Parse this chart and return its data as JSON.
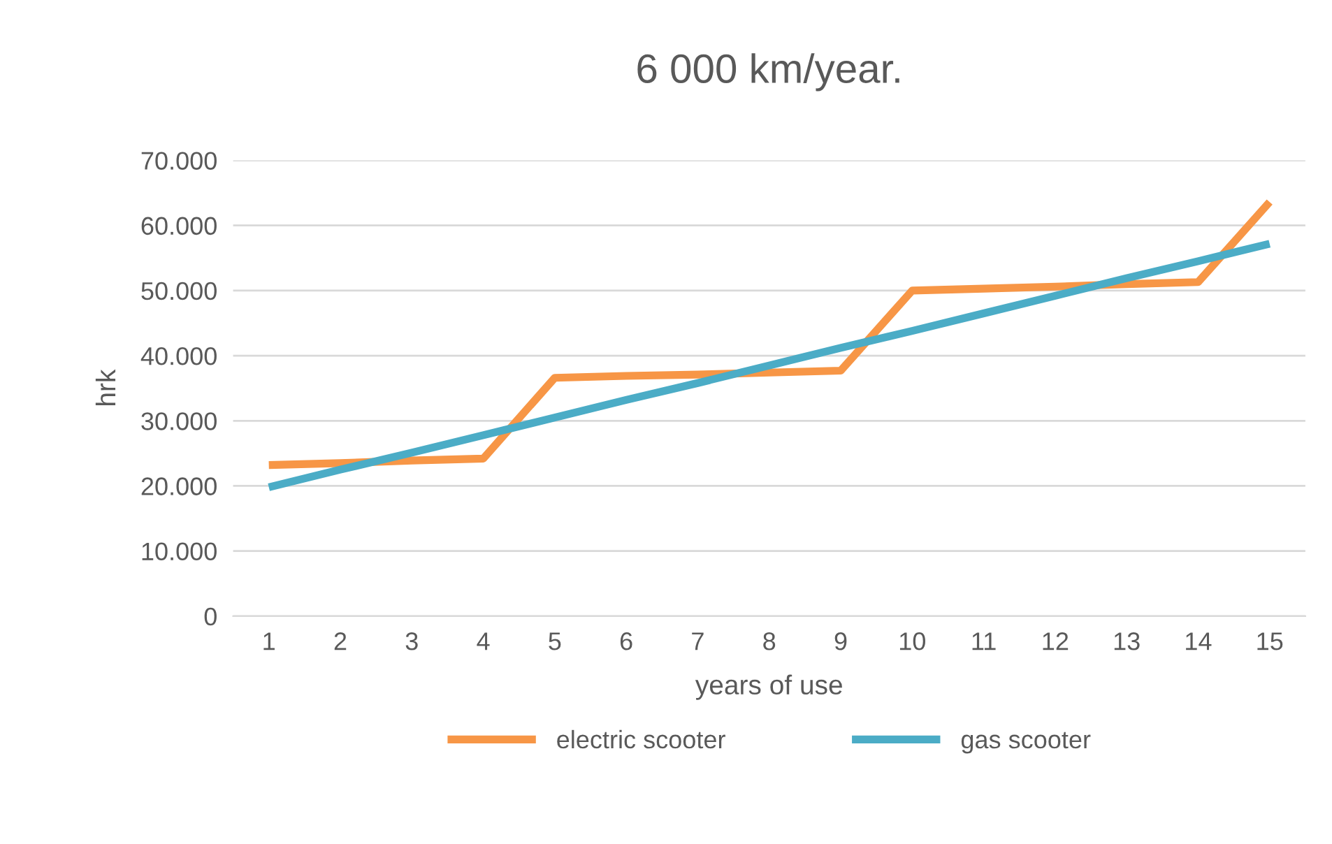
{
  "chart_data": {
    "type": "line",
    "title": "6 000 km/year.",
    "xlabel": "years of use",
    "ylabel": "hrk",
    "categories": [
      "1",
      "2",
      "3",
      "4",
      "5",
      "6",
      "7",
      "8",
      "9",
      "10",
      "11",
      "12",
      "13",
      "14",
      "15"
    ],
    "series": [
      {
        "name": "electric scooter",
        "color": "#f79646",
        "values": [
          23200,
          23500,
          23900,
          24200,
          36600,
          36900,
          37100,
          37400,
          37700,
          50000,
          50300,
          50600,
          51000,
          51300,
          63600
        ]
      },
      {
        "name": "gas scooter",
        "color": "#4bacc6",
        "values": [
          19800,
          22500,
          25100,
          27800,
          30500,
          33200,
          35800,
          38500,
          41200,
          43800,
          46500,
          49200,
          51900,
          54500,
          57200
        ]
      }
    ],
    "ylim": [
      0,
      70000
    ],
    "yticks": [
      {
        "value": 0,
        "label": "0"
      },
      {
        "value": 10000,
        "label": "10.000"
      },
      {
        "value": 20000,
        "label": "20.000"
      },
      {
        "value": 30000,
        "label": "30.000"
      },
      {
        "value": 40000,
        "label": "40.000"
      },
      {
        "value": 50000,
        "label": "50.000"
      },
      {
        "value": 60000,
        "label": "60.000"
      },
      {
        "value": 70000,
        "label": "70.000"
      }
    ],
    "grid": "y",
    "legend": "bottom",
    "marker": "none",
    "line_style": "solid"
  }
}
